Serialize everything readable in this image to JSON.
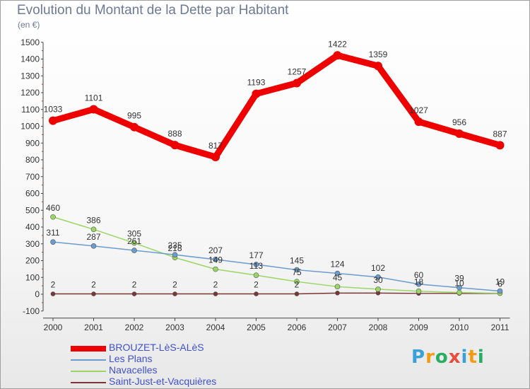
{
  "chart_data": {
    "type": "line",
    "title": "Evolution du Montant de la Dette par Habitant",
    "subtitle": "(en €)",
    "categories": [
      "2000",
      "2001",
      "2002",
      "2003",
      "2004",
      "2005",
      "2006",
      "2007",
      "2008",
      "2009",
      "2010",
      "2011"
    ],
    "ylim": [
      -100,
      1500
    ],
    "yticks": [
      -100,
      0,
      100,
      200,
      300,
      400,
      500,
      600,
      700,
      800,
      900,
      1000,
      1100,
      1200,
      1300,
      1400,
      1500
    ],
    "grid": false,
    "legend_position": "bottom-left",
    "series": [
      {
        "name": "BROUZET-LèS-ALèS",
        "color": "#ee0000",
        "values": [
          1033,
          1101,
          995,
          888,
          817,
          1193,
          1257,
          1422,
          1359,
          1027,
          956,
          887
        ]
      },
      {
        "name": "Les Plans",
        "color": "#6a9ccd",
        "values": [
          311,
          287,
          261,
          235,
          207,
          177,
          145,
          124,
          102,
          60,
          39,
          19
        ]
      },
      {
        "name": "Navacelles",
        "color": "#9ad663",
        "values": [
          460,
          386,
          305,
          218,
          149,
          113,
          75,
          45,
          30,
          18,
          10,
          6
        ]
      },
      {
        "name": "Saint-Just-et-Vacquières",
        "color": "#7a3535",
        "values": [
          2,
          2,
          2,
          2,
          2,
          2,
          2,
          7,
          7,
          5,
          5,
          5
        ]
      }
    ],
    "data_labels": [
      [
        "1033",
        "1101",
        "995",
        "888",
        "817",
        "1193",
        "1257",
        "1422",
        "1359",
        "1027",
        "956",
        "887"
      ],
      [
        "311",
        "287",
        "261",
        "235",
        "207",
        "177",
        "145",
        "124",
        "102",
        "60",
        "39",
        "19"
      ],
      [
        "460",
        "386",
        "305",
        "218",
        "149",
        "113",
        "75",
        "45",
        "30",
        "18",
        "10",
        "6"
      ],
      [
        "2",
        "2",
        "2",
        "2",
        "2",
        "2",
        "2",
        "",
        "",
        "",
        "",
        ""
      ]
    ]
  },
  "brand": {
    "letters": [
      "P",
      "r",
      "o",
      "x",
      "i",
      "t",
      "i"
    ],
    "colors": [
      "#3aa0d8",
      "#f39c12",
      "#27ae60",
      "#e74c3c",
      "#3aa0d8",
      "#f39c12",
      "#27ae60"
    ]
  }
}
